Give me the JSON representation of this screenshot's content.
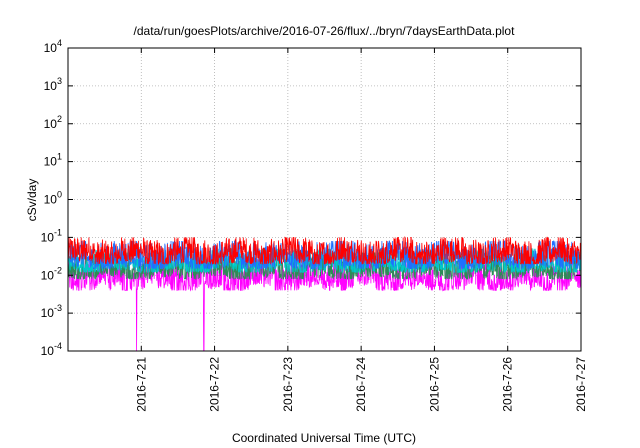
{
  "chart_data": {
    "type": "line",
    "title": "/data/run/goesPlots/archive/2016-07-26/flux/../bryn/7daysEarthData.plot",
    "xlabel": "Coordinated Universal Time (UTC)",
    "ylabel": "cSv/day",
    "yscale": "log",
    "ylim": [
      0.0001,
      10000
    ],
    "xlim": [
      "2016-07-20",
      "2016-07-27"
    ],
    "grid": true,
    "legend": "none",
    "x_ticks": [
      "2016-7-21",
      "2016-7-22",
      "2016-7-23",
      "2016-7-24",
      "2016-7-25",
      "2016-7-26",
      "2016-7-27"
    ],
    "y_ticks": [
      {
        "base": "10",
        "exp": "-4"
      },
      {
        "base": "10",
        "exp": "-3"
      },
      {
        "base": "10",
        "exp": "-2"
      },
      {
        "base": "10",
        "exp": "-1"
      },
      {
        "base": "10",
        "exp": "0"
      },
      {
        "base": "10",
        "exp": "1"
      },
      {
        "base": "10",
        "exp": "2"
      },
      {
        "base": "10",
        "exp": "3"
      },
      {
        "base": "10",
        "exp": "4"
      }
    ],
    "series": [
      {
        "color": "#ff0000",
        "approx_range": [
          0.02,
          0.1
        ]
      },
      {
        "color": "#1f6fff",
        "approx_range": [
          0.015,
          0.08
        ]
      },
      {
        "color": "#00c8c8",
        "approx_range": [
          0.012,
          0.05
        ]
      },
      {
        "color": "#2e8b57",
        "approx_range": [
          0.008,
          0.04
        ]
      },
      {
        "color": "#ff00ff",
        "approx_range": [
          0.004,
          0.03
        ],
        "dropouts": [
          "2016-07-20 22:30",
          "2016-07-21 20:30"
        ]
      }
    ]
  }
}
